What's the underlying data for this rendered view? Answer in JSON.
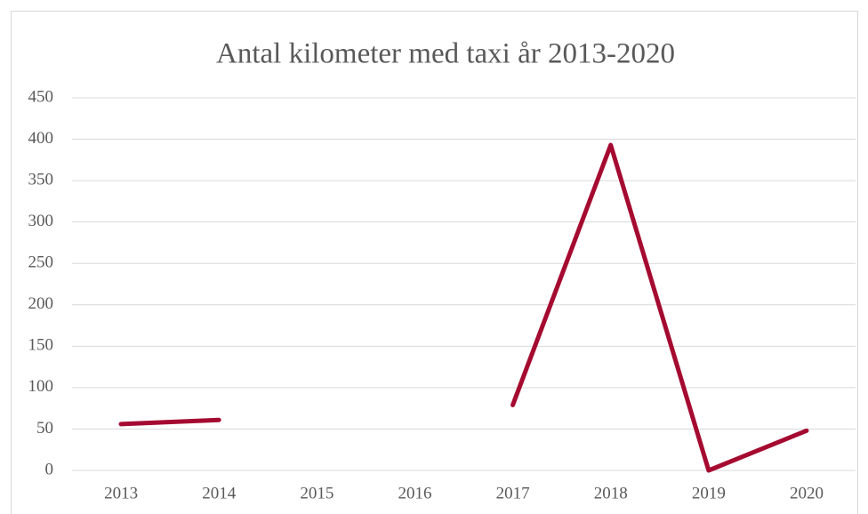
{
  "chart_data": {
    "type": "line",
    "title": "Antal kilometer med taxi år 2013-2020",
    "categories": [
      "2013",
      "2014",
      "2015",
      "2016",
      "2017",
      "2018",
      "2019",
      "2020"
    ],
    "values": [
      56,
      61,
      null,
      null,
      79,
      393,
      0,
      48
    ],
    "color": "#a50a30",
    "ylim": [
      0,
      450
    ],
    "yticks": [
      0,
      50,
      100,
      150,
      200,
      250,
      300,
      350,
      400,
      450
    ],
    "grid": true
  }
}
